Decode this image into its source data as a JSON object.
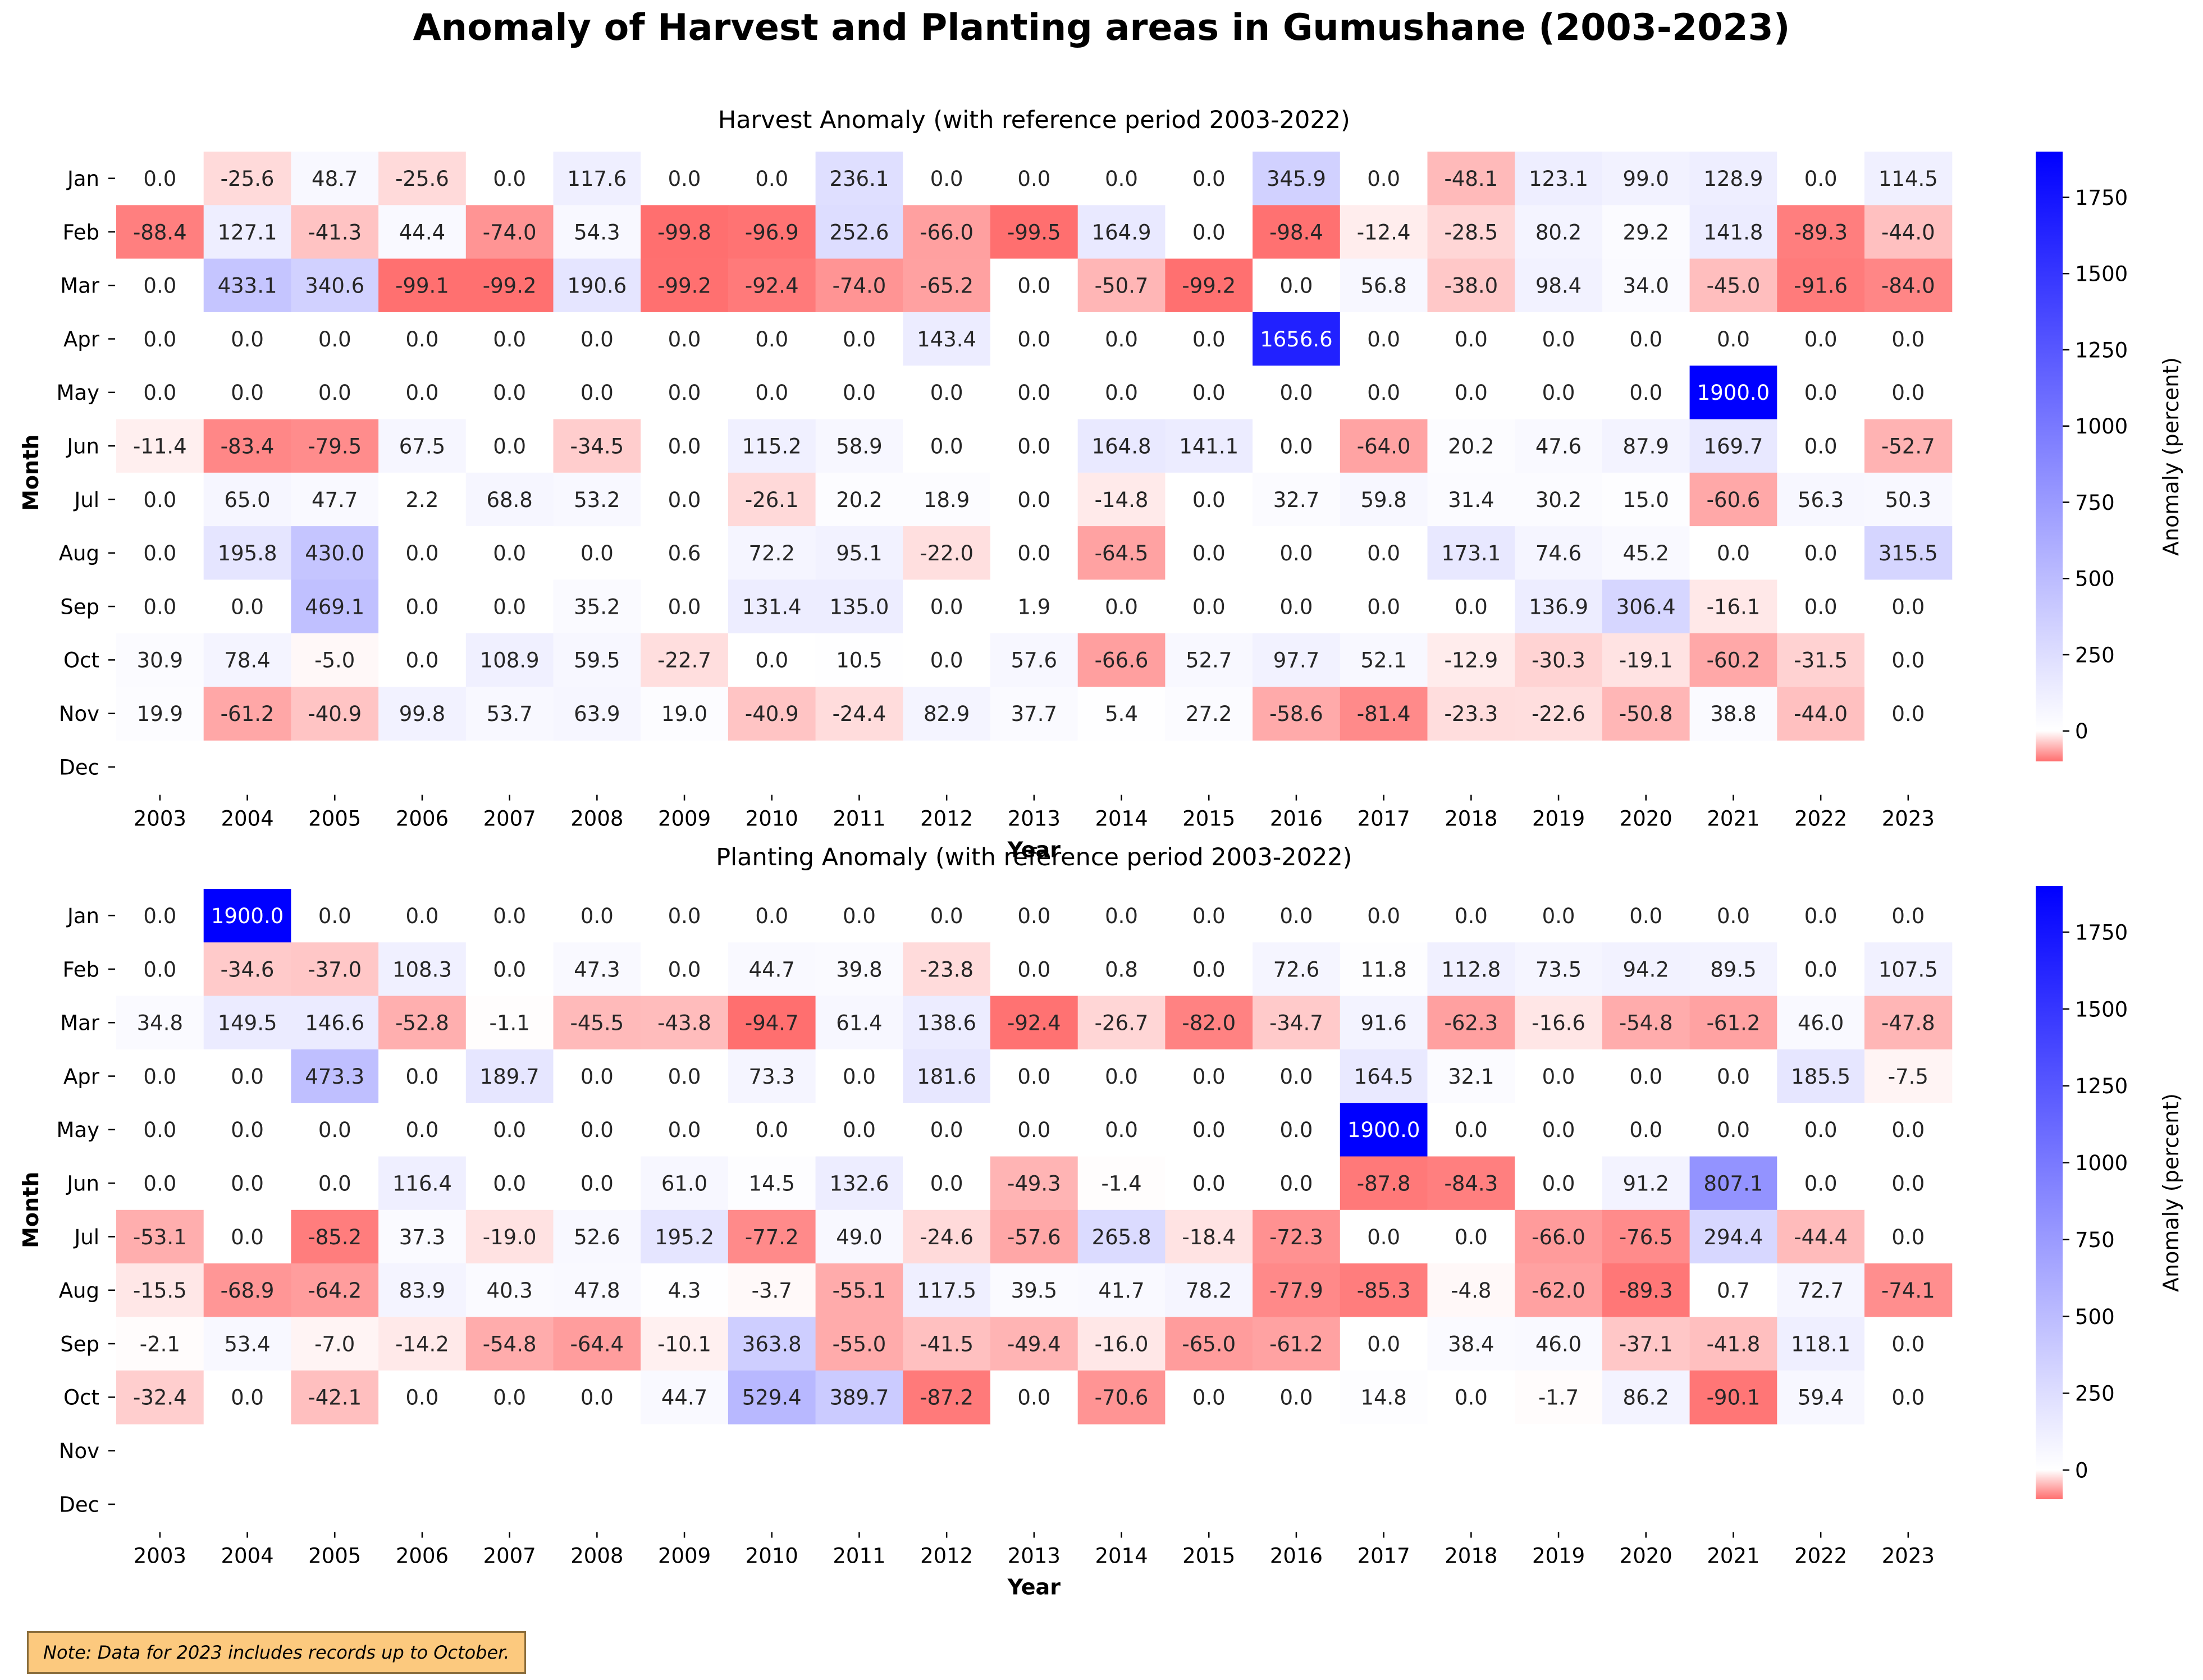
{
  "title": "Anomaly of Harvest and Planting areas in Gumushane (2003-2023)",
  "note": "Note: Data for 2023 includes records up to October.",
  "colors": {
    "negative": "#ff6f6f",
    "zero": "#ffffff",
    "positive": "#0000ff"
  },
  "chart_data": [
    {
      "type": "heatmap",
      "title": "Harvest Anomaly (with reference period 2003-2022)",
      "xlabel": "Year",
      "ylabel": "Month",
      "colorbar_label": "Anomaly (percent)",
      "colorbar_ticks": [
        0,
        250,
        500,
        750,
        1000,
        1250,
        1500,
        1750
      ],
      "vmin": -99.8,
      "vmax": 1900.0,
      "x": [
        "2003",
        "2004",
        "2005",
        "2006",
        "2007",
        "2008",
        "2009",
        "2010",
        "2011",
        "2012",
        "2013",
        "2014",
        "2015",
        "2016",
        "2017",
        "2018",
        "2019",
        "2020",
        "2021",
        "2022",
        "2023"
      ],
      "y": [
        "Jan",
        "Feb",
        "Mar",
        "Apr",
        "May",
        "Jun",
        "Jul",
        "Aug",
        "Sep",
        "Oct",
        "Nov",
        "Dec"
      ],
      "values": [
        [
          0.0,
          -25.6,
          48.7,
          -25.6,
          0.0,
          117.6,
          0.0,
          0.0,
          236.1,
          0.0,
          0.0,
          0.0,
          0.0,
          345.9,
          0.0,
          -48.1,
          123.1,
          99.0,
          128.9,
          0.0,
          114.5
        ],
        [
          -88.4,
          127.1,
          -41.3,
          44.4,
          -74.0,
          54.3,
          -99.8,
          -96.9,
          252.6,
          -66.0,
          -99.5,
          164.9,
          0.0,
          -98.4,
          -12.4,
          -28.5,
          80.2,
          29.2,
          141.8,
          -89.3,
          -44.0
        ],
        [
          0.0,
          433.1,
          340.6,
          -99.1,
          -99.2,
          190.6,
          -99.2,
          -92.4,
          -74.0,
          -65.2,
          0.0,
          -50.7,
          -99.2,
          0.0,
          56.8,
          -38.0,
          98.4,
          34.0,
          -45.0,
          -91.6,
          -84.0
        ],
        [
          0.0,
          0.0,
          0.0,
          0.0,
          0.0,
          0.0,
          0.0,
          0.0,
          0.0,
          143.4,
          0.0,
          0.0,
          0.0,
          1656.6,
          0.0,
          0.0,
          0.0,
          0.0,
          0.0,
          0.0,
          0.0
        ],
        [
          0.0,
          0.0,
          0.0,
          0.0,
          0.0,
          0.0,
          0.0,
          0.0,
          0.0,
          0.0,
          0.0,
          0.0,
          0.0,
          0.0,
          0.0,
          0.0,
          0.0,
          0.0,
          1900.0,
          0.0,
          0.0
        ],
        [
          -11.4,
          -83.4,
          -79.5,
          67.5,
          0.0,
          -34.5,
          0.0,
          115.2,
          58.9,
          0.0,
          0.0,
          164.8,
          141.1,
          0.0,
          -64.0,
          20.2,
          47.6,
          87.9,
          169.7,
          0.0,
          -52.7
        ],
        [
          0.0,
          65.0,
          47.7,
          2.2,
          68.8,
          53.2,
          0.0,
          -26.1,
          20.2,
          18.9,
          0.0,
          -14.8,
          0.0,
          32.7,
          59.8,
          31.4,
          30.2,
          15.0,
          -60.6,
          56.3,
          50.3
        ],
        [
          0.0,
          195.8,
          430.0,
          0.0,
          0.0,
          0.0,
          0.6,
          72.2,
          95.1,
          -22.0,
          0.0,
          -64.5,
          0.0,
          0.0,
          0.0,
          173.1,
          74.6,
          45.2,
          0.0,
          0.0,
          315.5
        ],
        [
          0.0,
          0.0,
          469.1,
          0.0,
          0.0,
          35.2,
          0.0,
          131.4,
          135.0,
          0.0,
          1.9,
          0.0,
          0.0,
          0.0,
          0.0,
          0.0,
          136.9,
          306.4,
          -16.1,
          0.0,
          0.0
        ],
        [
          30.9,
          78.4,
          -5.0,
          0.0,
          108.9,
          59.5,
          -22.7,
          0.0,
          10.5,
          0.0,
          57.6,
          -66.6,
          52.7,
          97.7,
          52.1,
          -12.9,
          -30.3,
          -19.1,
          -60.2,
          -31.5,
          0.0
        ],
        [
          19.9,
          -61.2,
          -40.9,
          99.8,
          53.7,
          63.9,
          19.0,
          -40.9,
          -24.4,
          82.9,
          37.7,
          5.4,
          27.2,
          -58.6,
          -81.4,
          -23.3,
          -22.6,
          -50.8,
          38.8,
          -44.0,
          0.0
        ],
        [
          null,
          null,
          null,
          null,
          null,
          null,
          null,
          null,
          null,
          null,
          null,
          null,
          null,
          null,
          null,
          null,
          null,
          null,
          null,
          null,
          null
        ]
      ]
    },
    {
      "type": "heatmap",
      "title": "Planting Anomaly (with reference period 2003-2022)",
      "xlabel": "Year",
      "ylabel": "Month",
      "colorbar_label": "Anomaly (percent)",
      "colorbar_ticks": [
        0,
        250,
        500,
        750,
        1000,
        1250,
        1500,
        1750
      ],
      "vmin": -94.7,
      "vmax": 1900.0,
      "x": [
        "2003",
        "2004",
        "2005",
        "2006",
        "2007",
        "2008",
        "2009",
        "2010",
        "2011",
        "2012",
        "2013",
        "2014",
        "2015",
        "2016",
        "2017",
        "2018",
        "2019",
        "2020",
        "2021",
        "2022",
        "2023"
      ],
      "y": [
        "Jan",
        "Feb",
        "Mar",
        "Apr",
        "May",
        "Jun",
        "Jul",
        "Aug",
        "Sep",
        "Oct",
        "Nov",
        "Dec"
      ],
      "values": [
        [
          0.0,
          1900.0,
          0.0,
          0.0,
          0.0,
          0.0,
          0.0,
          0.0,
          0.0,
          0.0,
          0.0,
          0.0,
          0.0,
          0.0,
          0.0,
          0.0,
          0.0,
          0.0,
          0.0,
          0.0,
          0.0
        ],
        [
          0.0,
          -34.6,
          -37.0,
          108.3,
          0.0,
          47.3,
          0.0,
          44.7,
          39.8,
          -23.8,
          0.0,
          0.8,
          0.0,
          72.6,
          11.8,
          112.8,
          73.5,
          94.2,
          89.5,
          0.0,
          107.5
        ],
        [
          34.8,
          149.5,
          146.6,
          -52.8,
          -1.1,
          -45.5,
          -43.8,
          -94.7,
          61.4,
          138.6,
          -92.4,
          -26.7,
          -82.0,
          -34.7,
          91.6,
          -62.3,
          -16.6,
          -54.8,
          -61.2,
          46.0,
          -47.8
        ],
        [
          0.0,
          0.0,
          473.3,
          0.0,
          189.7,
          0.0,
          0.0,
          73.3,
          0.0,
          181.6,
          0.0,
          0.0,
          0.0,
          0.0,
          164.5,
          32.1,
          0.0,
          0.0,
          0.0,
          185.5,
          -7.5
        ],
        [
          0.0,
          0.0,
          0.0,
          0.0,
          0.0,
          0.0,
          0.0,
          0.0,
          0.0,
          0.0,
          0.0,
          0.0,
          0.0,
          0.0,
          1900.0,
          0.0,
          0.0,
          0.0,
          0.0,
          0.0,
          0.0
        ],
        [
          0.0,
          0.0,
          0.0,
          116.4,
          0.0,
          0.0,
          61.0,
          14.5,
          132.6,
          0.0,
          -49.3,
          -1.4,
          0.0,
          0.0,
          -87.8,
          -84.3,
          0.0,
          91.2,
          807.1,
          0.0,
          0.0
        ],
        [
          -53.1,
          0.0,
          -85.2,
          37.3,
          -19.0,
          52.6,
          195.2,
          -77.2,
          49.0,
          -24.6,
          -57.6,
          265.8,
          -18.4,
          -72.3,
          0.0,
          0.0,
          -66.0,
          -76.5,
          294.4,
          -44.4,
          0.0
        ],
        [
          -15.5,
          -68.9,
          -64.2,
          83.9,
          40.3,
          47.8,
          4.3,
          -3.7,
          -55.1,
          117.5,
          39.5,
          41.7,
          78.2,
          -77.9,
          -85.3,
          -4.8,
          -62.0,
          -89.3,
          0.7,
          72.7,
          -74.1
        ],
        [
          -2.1,
          53.4,
          -7.0,
          -14.2,
          -54.8,
          -64.4,
          -10.1,
          363.8,
          -55.0,
          -41.5,
          -49.4,
          -16.0,
          -65.0,
          -61.2,
          0.0,
          38.4,
          46.0,
          -37.1,
          -41.8,
          118.1,
          0.0
        ],
        [
          -32.4,
          0.0,
          -42.1,
          0.0,
          0.0,
          0.0,
          44.7,
          529.4,
          389.7,
          -87.2,
          0.0,
          -70.6,
          0.0,
          0.0,
          14.8,
          0.0,
          -1.7,
          86.2,
          -90.1,
          59.4,
          0.0
        ],
        [
          null,
          null,
          null,
          null,
          null,
          null,
          null,
          null,
          null,
          null,
          null,
          null,
          null,
          null,
          null,
          null,
          null,
          null,
          null,
          null,
          null
        ],
        [
          null,
          null,
          null,
          null,
          null,
          null,
          null,
          null,
          null,
          null,
          null,
          null,
          null,
          null,
          null,
          null,
          null,
          null,
          null,
          null,
          null
        ]
      ]
    }
  ]
}
